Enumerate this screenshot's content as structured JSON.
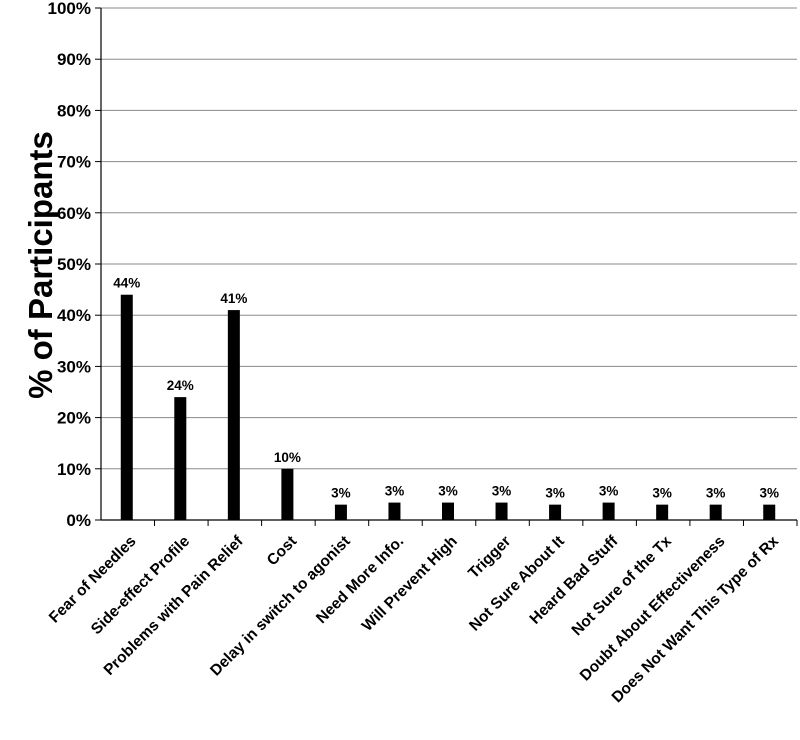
{
  "chart_data": {
    "type": "bar",
    "title": "",
    "xlabel": "",
    "ylabel": "% of Participants",
    "ylim": [
      0,
      100
    ],
    "y_ticks": [
      "0%",
      "10%",
      "20%",
      "30%",
      "40%",
      "50%",
      "60%",
      "70%",
      "80%",
      "90%",
      "100%"
    ],
    "grid": true,
    "legend": "none",
    "bar_color": "#000000",
    "categories": [
      "Fear of Needles",
      "Side-effect Profile",
      "Problems with Pain Relief",
      "Cost",
      "Delay in switch to agonist",
      "Need More Info.",
      "Will Prevent High",
      "Trigger",
      "Not Sure About It",
      "Heard Bad Stuff",
      "Not Sure of the Tx",
      "Doubt About Effectiveness",
      "Does Not Want This Type of Rx"
    ],
    "values": [
      44,
      24,
      41,
      10,
      3,
      3.4,
      3.4,
      3.4,
      3,
      3.4,
      3,
      3,
      3
    ],
    "data_labels": [
      "44%",
      "24%",
      "41%",
      "10%",
      "3%",
      "3%",
      "3%",
      "3%",
      "3%",
      "3%",
      "3%",
      "3%",
      "3%"
    ]
  }
}
